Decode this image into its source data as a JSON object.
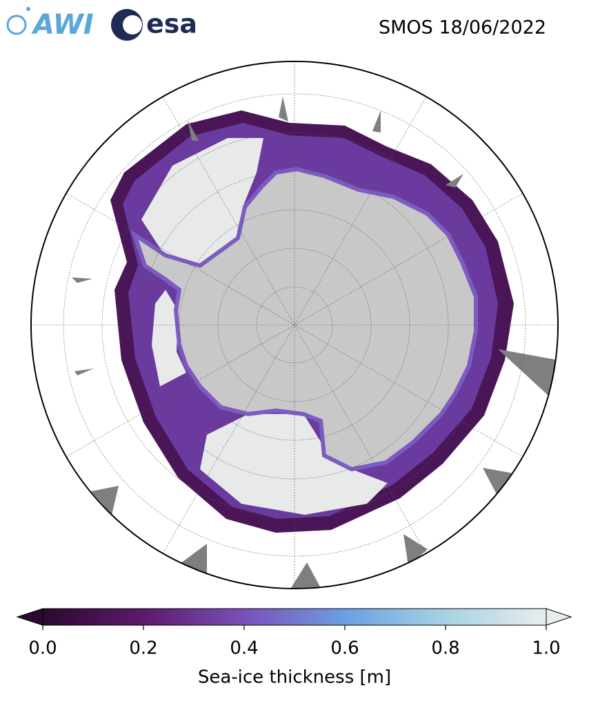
{
  "header": {
    "logos": [
      "AWI",
      "esa"
    ],
    "title": "SMOS 18/06/2022"
  },
  "colorbar": {
    "label": "Sea-ice thickness [m]",
    "lim": [
      0,
      1
    ],
    "ticks": [
      {
        "value": 0,
        "label": "0.0"
      },
      0.2,
      0.4,
      0.6,
      0.8,
      {
        "value": 1,
        "label": "1.0"
      }
    ],
    "colors": [
      "#2a0a2e",
      "#5c1a6c",
      "#7a50b8",
      "#6c9ee2",
      "#a8d2e2",
      "#e8eded"
    ]
  }
}
